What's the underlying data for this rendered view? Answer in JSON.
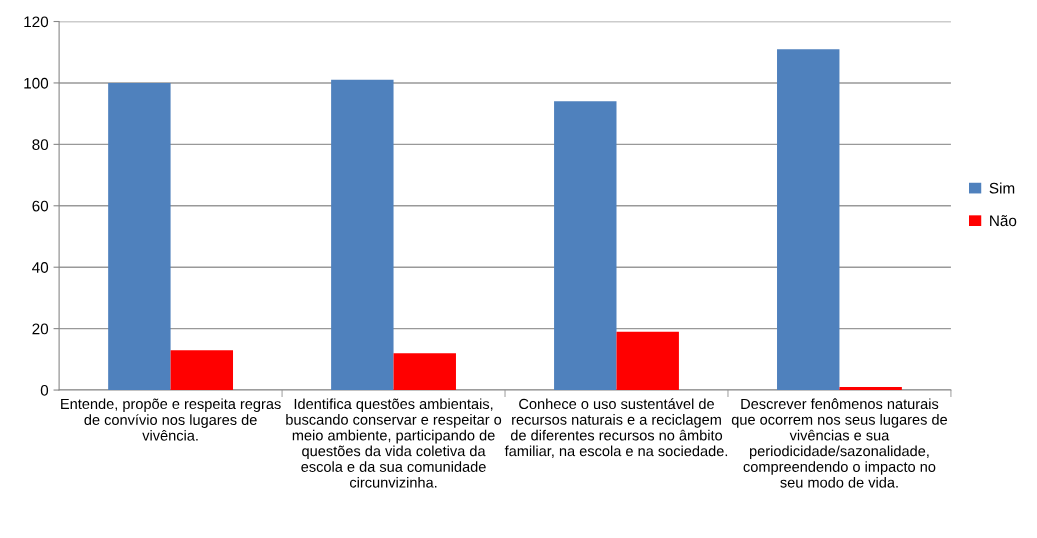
{
  "chart_data": {
    "type": "bar",
    "categories": [
      "Entende, propõe e respeita regras\nde convívio nos lugares de\nvivência.",
      "Identifica questões ambientais,\nbuscando conservar e respeitar o\nmeio ambiente, participando de\nquestões da vida coletiva da\nescola e da sua comunidade\ncircunvizinha.",
      "Conhece o uso sustentável de\nrecursos naturais e a reciclagem\nde diferentes recursos no âmbito\nfamiliar, na escola e na sociedade.",
      "Descrever fenômenos naturais\nque ocorrem nos seus lugares de\nvivências e sua\nperiodicidade/sazonalidade,\ncompreendendo o impacto no\nseu modo de vida."
    ],
    "series": [
      {
        "name": "Sim",
        "color": "#4f81bd",
        "values": [
          100,
          101,
          94,
          111
        ]
      },
      {
        "name": "Não",
        "color": "#ff0000",
        "values": [
          13,
          12,
          19,
          1
        ]
      }
    ],
    "ylim": [
      0,
      120
    ],
    "yticks": [
      0,
      20,
      40,
      60,
      80,
      100,
      120
    ],
    "grid": "y",
    "legend": "right"
  }
}
